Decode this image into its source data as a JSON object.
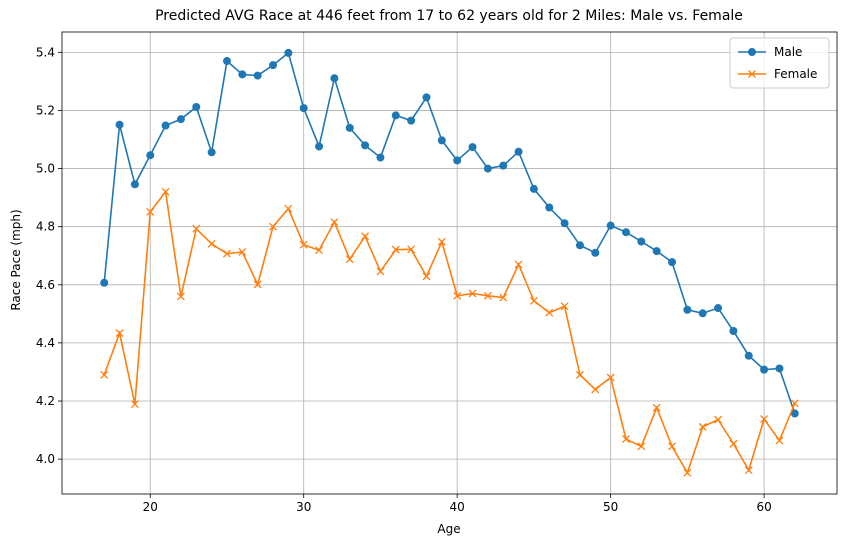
{
  "chart_data": {
    "type": "line",
    "title": "Predicted AVG Race at 446 feet from 17 to 62 years old for 2 Miles: Male vs. Female",
    "xlabel": "Age",
    "ylabel": "Race Pace (mph)",
    "xlim": [
      14.25,
      64.75
    ],
    "ylim": [
      3.88,
      5.47
    ],
    "xticks": [
      20,
      30,
      40,
      50,
      60
    ],
    "yticks": [
      4.0,
      4.2,
      4.4,
      4.6,
      4.8,
      5.0,
      5.2,
      5.4
    ],
    "grid": true,
    "legend_position": "top-right",
    "x": [
      17,
      18,
      19,
      20,
      21,
      22,
      23,
      24,
      25,
      26,
      27,
      28,
      29,
      30,
      31,
      32,
      33,
      34,
      35,
      36,
      37,
      38,
      39,
      40,
      41,
      42,
      43,
      44,
      45,
      46,
      47,
      48,
      49,
      50,
      51,
      52,
      53,
      54,
      55,
      56,
      57,
      58,
      59,
      60,
      61,
      62
    ],
    "series": [
      {
        "name": "Male",
        "color": "#1f77b4",
        "marker": "circle",
        "values": [
          4.607,
          5.151,
          4.946,
          5.046,
          5.148,
          5.17,
          5.212,
          5.056,
          5.37,
          5.324,
          5.32,
          5.356,
          5.398,
          5.208,
          5.076,
          5.311,
          5.14,
          5.08,
          5.038,
          5.183,
          5.165,
          5.245,
          5.097,
          5.028,
          5.074,
          5.0,
          5.01,
          5.058,
          4.93,
          4.866,
          4.812,
          4.736,
          4.71,
          4.804,
          4.781,
          4.749,
          4.716,
          4.678,
          4.514,
          4.502,
          4.52,
          4.441,
          4.356,
          4.308,
          4.312,
          4.157
        ]
      },
      {
        "name": "Female",
        "color": "#ff7f0e",
        "marker": "x",
        "values": [
          4.29,
          4.434,
          4.189,
          4.851,
          4.92,
          4.56,
          4.793,
          4.741,
          4.707,
          4.713,
          4.601,
          4.8,
          4.862,
          4.738,
          4.719,
          4.816,
          4.688,
          4.767,
          4.646,
          4.721,
          4.722,
          4.629,
          4.748,
          4.562,
          4.57,
          4.562,
          4.556,
          4.67,
          4.545,
          4.504,
          4.526,
          4.29,
          4.24,
          4.281,
          4.069,
          4.044,
          4.177,
          4.044,
          3.953,
          4.111,
          4.136,
          4.053,
          3.962,
          4.138,
          4.064,
          4.192
        ]
      }
    ]
  }
}
